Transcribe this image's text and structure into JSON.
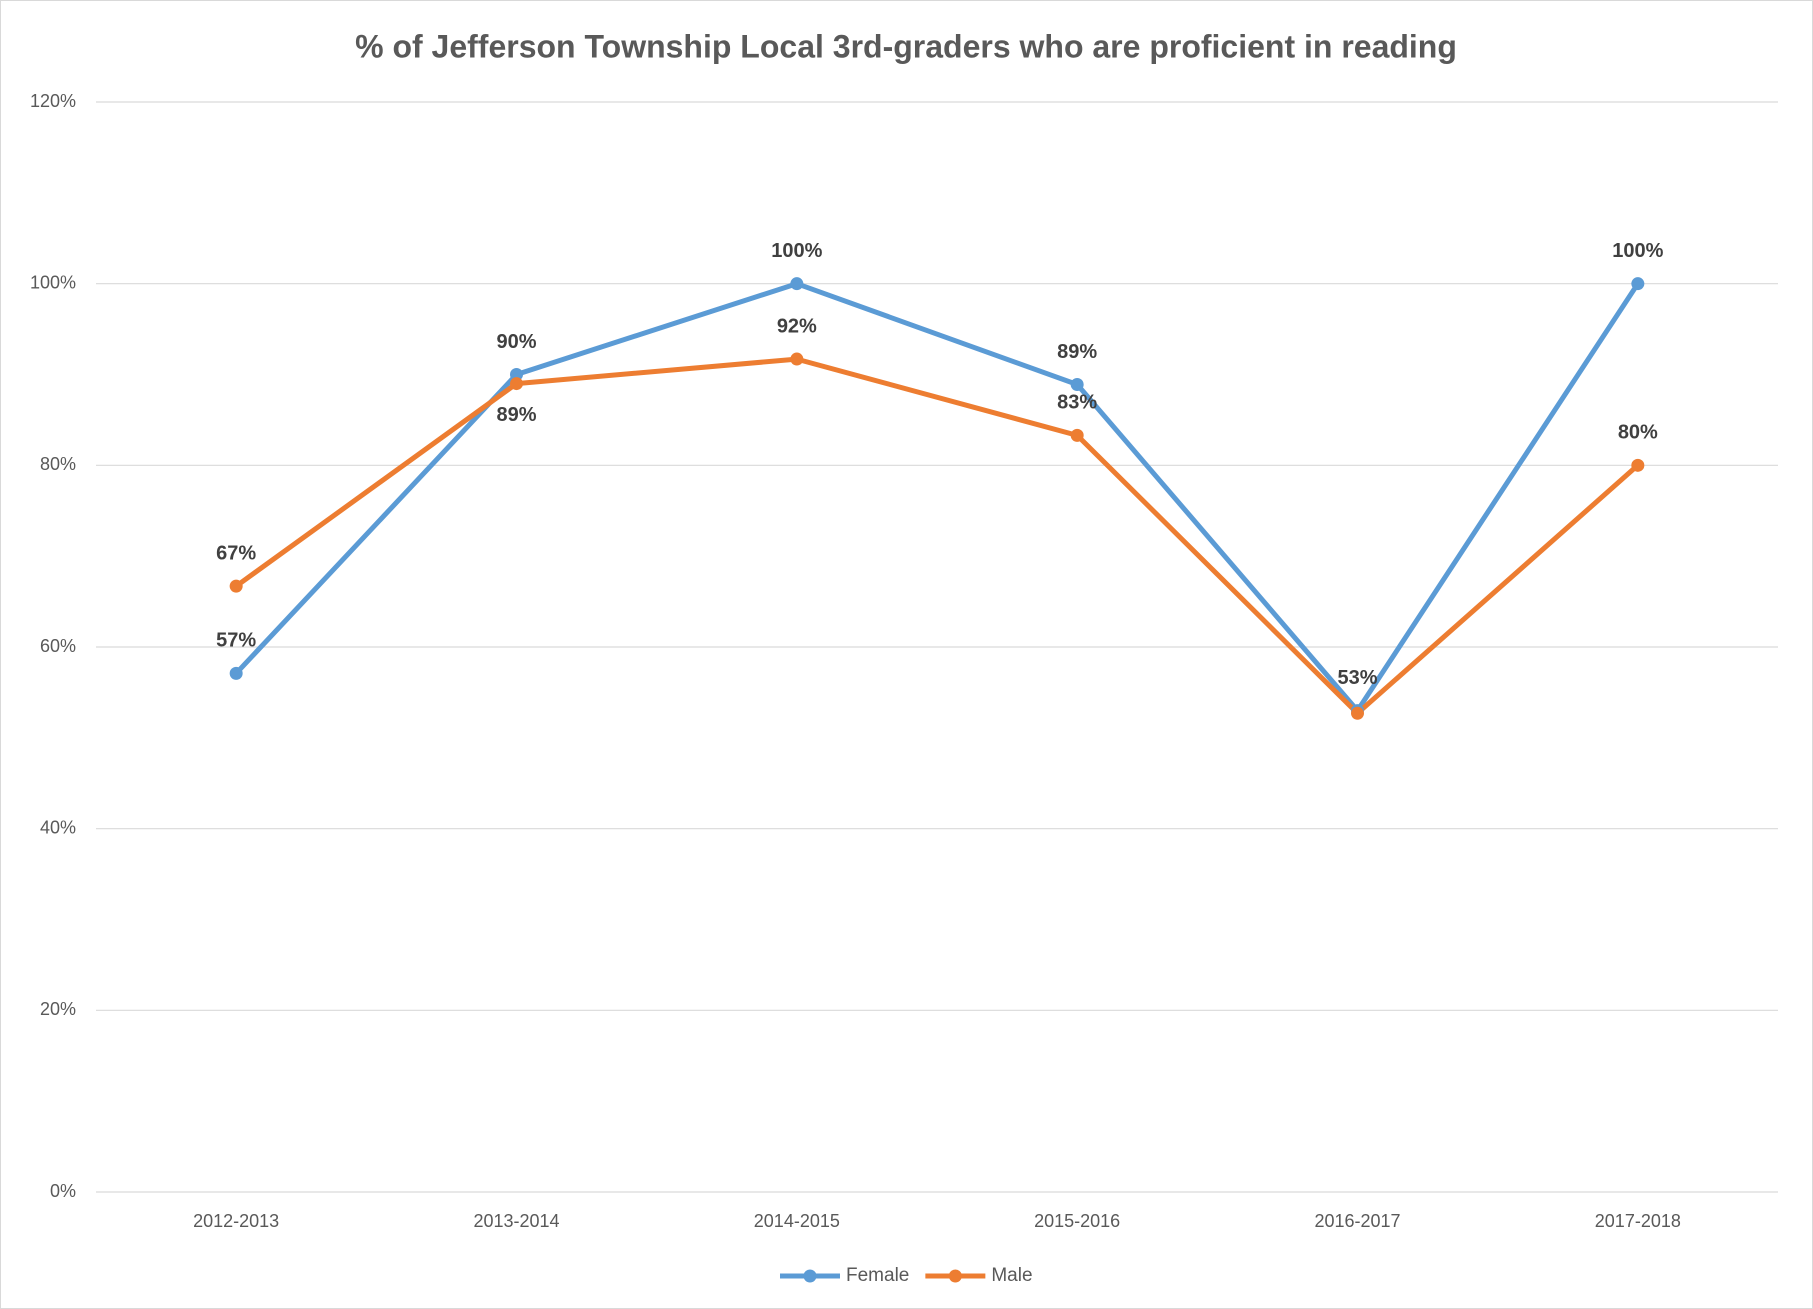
{
  "chart_data": {
    "type": "line",
    "title": "% of Jefferson Township Local 3rd-graders who are proficient in reading",
    "categories": [
      "2012-2013",
      "2013-2014",
      "2014-2015",
      "2015-2016",
      "2016-2017",
      "2017-2018"
    ],
    "series": [
      {
        "name": "Female",
        "color": "#5b9bd5",
        "values": [
          57.1,
          90,
          100,
          88.9,
          53,
          100
        ],
        "value_labels": [
          "57%",
          "90%",
          "100%",
          "89%",
          "53%",
          "100%"
        ]
      },
      {
        "name": "Male",
        "color": "#ed7d31",
        "values": [
          66.7,
          89,
          91.7,
          83.3,
          52.7,
          80
        ],
        "value_labels": [
          "67%",
          "89%",
          "92%",
          "83%",
          null,
          "80%"
        ]
      }
    ],
    "ylim": [
      0,
      120
    ],
    "yticks": [
      {
        "value": 0,
        "label": "0%"
      },
      {
        "value": 20,
        "label": "20%"
      },
      {
        "value": 40,
        "label": "40%"
      },
      {
        "value": 60,
        "label": "60%"
      },
      {
        "value": 80,
        "label": "80%"
      },
      {
        "value": 100,
        "label": "100%"
      },
      {
        "value": 120,
        "label": "120%"
      }
    ],
    "grid": true,
    "legend": "bottom"
  }
}
